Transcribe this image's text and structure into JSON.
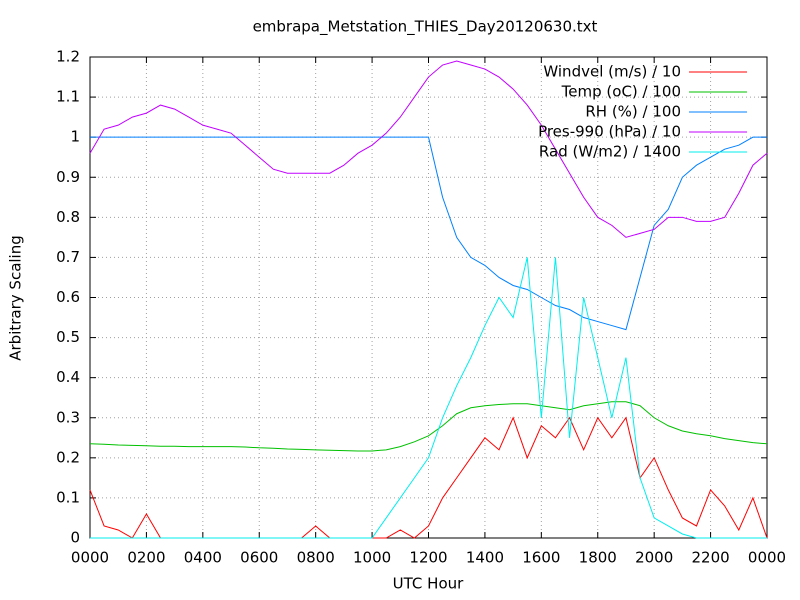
{
  "chart_data": {
    "type": "line",
    "title": "embrapa_Metstation_THIES_Day20120630.txt",
    "x_label": "UTC Hour",
    "y_label": "Arbitrary Scaling",
    "x": [
      0,
      0.5,
      1,
      1.5,
      2,
      2.5,
      3,
      3.5,
      4,
      4.5,
      5,
      5.5,
      6,
      6.5,
      7,
      7.5,
      8,
      8.5,
      9,
      9.5,
      10,
      10.5,
      11,
      11.5,
      12,
      12.5,
      13,
      13.5,
      14,
      14.5,
      15,
      15.5,
      16,
      16.5,
      17,
      17.5,
      18,
      18.5,
      19,
      19.5,
      20,
      20.5,
      21,
      21.5,
      22,
      22.5,
      23,
      23.5,
      24
    ],
    "series": [
      {
        "name": "Windvel (m/s) / 10",
        "color": "#ff0000",
        "values": [
          0.12,
          0.03,
          0.02,
          0,
          0.06,
          0,
          0,
          0,
          0,
          0,
          0,
          0,
          0,
          0,
          0,
          0,
          0.03,
          0,
          0,
          0,
          0,
          0,
          0.02,
          0,
          0.03,
          0.1,
          0.15,
          0.2,
          0.25,
          0.22,
          0.3,
          0.2,
          0.28,
          0.25,
          0.3,
          0.22,
          0.3,
          0.25,
          0.3,
          0.15,
          0.2,
          0.12,
          0.05,
          0.03,
          0.12,
          0.08,
          0.02,
          0.1,
          0
        ]
      },
      {
        "name": "Temp (oC) / 100",
        "color": "#00c000",
        "values": [
          0.235,
          0.234,
          0.232,
          0.231,
          0.23,
          0.229,
          0.229,
          0.228,
          0.228,
          0.228,
          0.228,
          0.227,
          0.225,
          0.224,
          0.222,
          0.221,
          0.22,
          0.219,
          0.218,
          0.217,
          0.217,
          0.22,
          0.228,
          0.24,
          0.255,
          0.28,
          0.31,
          0.325,
          0.33,
          0.333,
          0.335,
          0.335,
          0.33,
          0.325,
          0.32,
          0.33,
          0.335,
          0.34,
          0.34,
          0.33,
          0.3,
          0.28,
          0.267,
          0.26,
          0.255,
          0.248,
          0.243,
          0.238,
          0.235
        ]
      },
      {
        "name": "RH (%) / 100",
        "color": "#0080ff",
        "values": [
          1,
          1,
          1,
          1,
          1,
          1,
          1,
          1,
          1,
          1,
          1,
          1,
          1,
          1,
          1,
          1,
          1,
          1,
          1,
          1,
          1,
          1,
          1,
          1,
          1,
          0.85,
          0.75,
          0.7,
          0.68,
          0.65,
          0.63,
          0.62,
          0.6,
          0.58,
          0.57,
          0.55,
          0.54,
          0.53,
          0.52,
          0.65,
          0.78,
          0.82,
          0.9,
          0.93,
          0.95,
          0.97,
          0.98,
          1,
          1
        ]
      },
      {
        "name": "Pres-990 (hPa) / 10",
        "color": "#c000ff",
        "values": [
          0.96,
          1.02,
          1.03,
          1.05,
          1.06,
          1.08,
          1.07,
          1.05,
          1.03,
          1.02,
          1.01,
          0.98,
          0.95,
          0.92,
          0.91,
          0.91,
          0.91,
          0.91,
          0.93,
          0.96,
          0.98,
          1.01,
          1.05,
          1.1,
          1.15,
          1.18,
          1.19,
          1.18,
          1.17,
          1.15,
          1.12,
          1.08,
          1.03,
          0.97,
          0.91,
          0.85,
          0.8,
          0.78,
          0.75,
          0.76,
          0.77,
          0.8,
          0.8,
          0.79,
          0.79,
          0.8,
          0.86,
          0.93,
          0.96
        ]
      },
      {
        "name": "Rad (W/m2) / 1400",
        "color": "#00eeee",
        "values": [
          0,
          0,
          0,
          0,
          0,
          0,
          0,
          0,
          0,
          0,
          0,
          0,
          0,
          0,
          0,
          0,
          0,
          0,
          0,
          0,
          0,
          0.05,
          0.1,
          0.15,
          0.2,
          0.3,
          0.38,
          0.45,
          0.53,
          0.6,
          0.55,
          0.7,
          0.3,
          0.7,
          0.25,
          0.6,
          0.45,
          0.3,
          0.45,
          0.15,
          0.05,
          0.03,
          0.01,
          0,
          0,
          0,
          0,
          0,
          0
        ]
      }
    ],
    "xlim": [
      0,
      24
    ],
    "xticks": [
      {
        "value": 0,
        "label": "0000"
      },
      {
        "value": 2,
        "label": "0200"
      },
      {
        "value": 4,
        "label": "0400"
      },
      {
        "value": 6,
        "label": "0600"
      },
      {
        "value": 8,
        "label": "0800"
      },
      {
        "value": 10,
        "label": "1000"
      },
      {
        "value": 12,
        "label": "1200"
      },
      {
        "value": 14,
        "label": "1400"
      },
      {
        "value": 16,
        "label": "1600"
      },
      {
        "value": 18,
        "label": "1800"
      },
      {
        "value": 20,
        "label": "2000"
      },
      {
        "value": 22,
        "label": "2200"
      },
      {
        "value": 24,
        "label": "0000"
      }
    ],
    "ylim": [
      0,
      1.2
    ],
    "yticks": [
      0,
      0.1,
      0.2,
      0.3,
      0.4,
      0.5,
      0.6,
      0.7,
      0.8,
      0.9,
      1,
      1.1,
      1.2
    ],
    "grid": true,
    "legend": "top-right"
  }
}
